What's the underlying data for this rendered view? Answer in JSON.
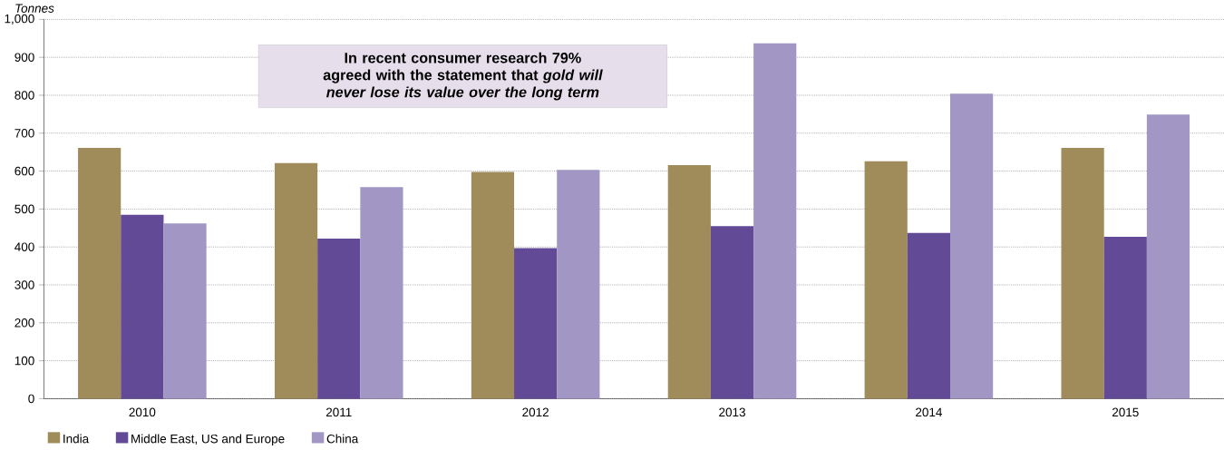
{
  "chart_data": {
    "type": "bar",
    "ylabel": "Tonnes",
    "categories": [
      "2010",
      "2011",
      "2012",
      "2013",
      "2014",
      "2015"
    ],
    "series": [
      {
        "name": "India",
        "color": "#a08c5a",
        "values": [
          661,
          621,
          598,
          616,
          626,
          661
        ]
      },
      {
        "name": "Middle East, US and Europe",
        "color": "#634a96",
        "values": [
          485,
          422,
          397,
          455,
          437,
          427
        ]
      },
      {
        "name": "China",
        "color": "#a196c4",
        "values": [
          462,
          558,
          603,
          937,
          804,
          749
        ]
      }
    ],
    "ylim": [
      0,
      1000
    ],
    "yticks": [
      0,
      100,
      200,
      300,
      400,
      500,
      600,
      700,
      800,
      900,
      {
        "value": 1000,
        "label": "1,000"
      }
    ],
    "grid": "y",
    "legend": "bottom left",
    "annotations": [
      "In recent consumer research 79% agreed with the statement that *gold will never lose its value over the long term*"
    ]
  }
}
